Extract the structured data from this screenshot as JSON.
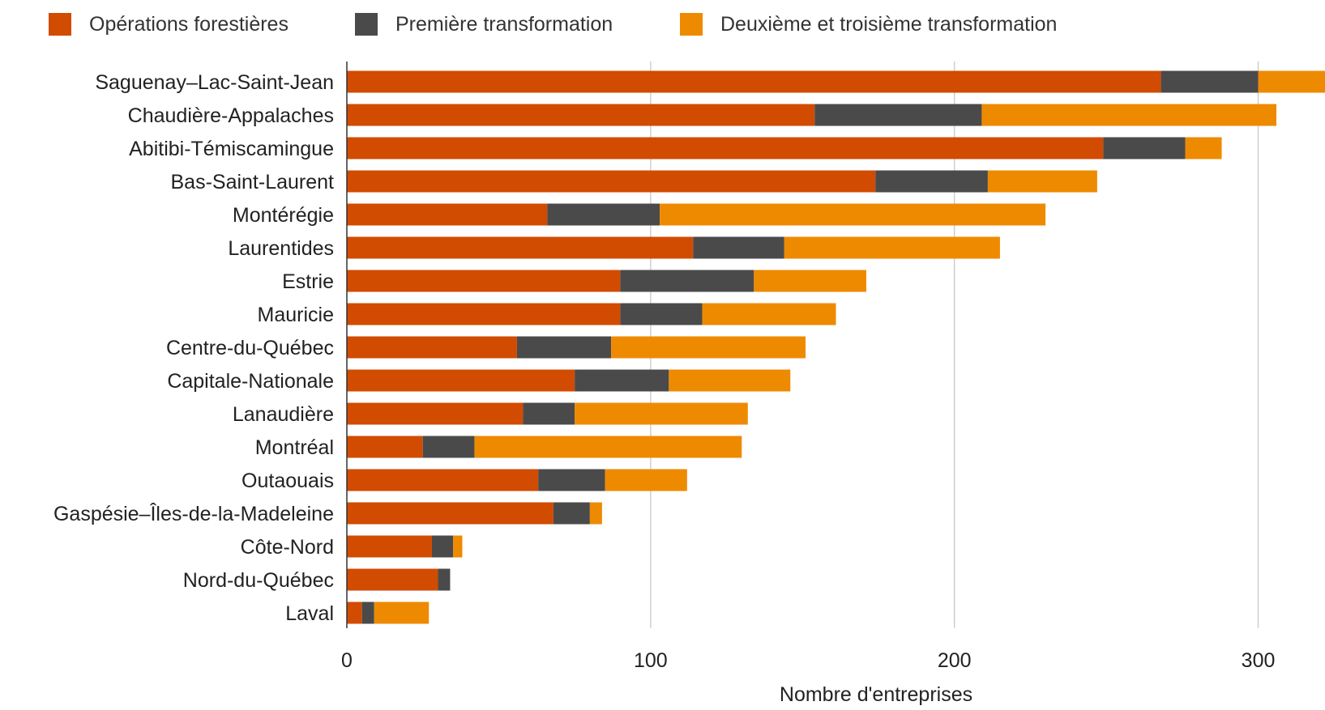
{
  "chart_data": {
    "type": "bar",
    "orientation": "horizontal",
    "stacked": true,
    "title": "",
    "xlabel": "Nombre d'entreprises",
    "ylabel": "",
    "xlim": [
      0,
      322
    ],
    "x_ticks": [
      0,
      100,
      200,
      300
    ],
    "grid": true,
    "legend_position": "top-left",
    "categories": [
      "Saguenay–Lac-Saint-Jean",
      "Chaudière-Appalaches",
      "Abitibi-Témiscamingue",
      "Bas-Saint-Laurent",
      "Montérégie",
      "Laurentides",
      "Estrie",
      "Mauricie",
      "Centre-du-Québec",
      "Capitale-Nationale",
      "Lanaudière",
      "Montréal",
      "Outaouais",
      "Gaspésie–Îles-de-la-Madeleine",
      "Côte-Nord",
      "Nord-du-Québec",
      "Laval"
    ],
    "series": [
      {
        "name": "Opérations forestières",
        "color": "#D14B00",
        "values": [
          268,
          154,
          249,
          174,
          66,
          114,
          90,
          90,
          56,
          75,
          58,
          25,
          63,
          68,
          28,
          30,
          5
        ]
      },
      {
        "name": "Première transformation",
        "color": "#4A4A4A",
        "values": [
          32,
          55,
          27,
          37,
          37,
          30,
          44,
          27,
          31,
          31,
          17,
          17,
          22,
          12,
          7,
          4,
          4
        ]
      },
      {
        "name": "Deuxième et troisième transformation",
        "color": "#EE8A00",
        "values": [
          22,
          97,
          12,
          36,
          127,
          71,
          37,
          44,
          64,
          40,
          57,
          88,
          27,
          4,
          3,
          0,
          18
        ]
      }
    ]
  }
}
